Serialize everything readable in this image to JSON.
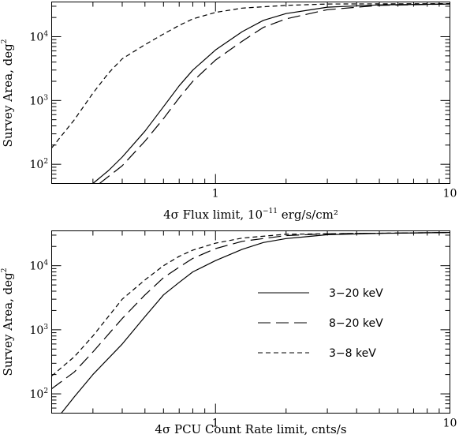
{
  "chart_data": [
    {
      "type": "line",
      "panel": "top",
      "xlabel_prefix": "4σ Flux limit, 10",
      "xlabel_exp": "−11",
      "xlabel_suffix": " erg/s/cm²",
      "ylabel": "Survey Area, deg",
      "ylabel_exp": "2",
      "xscale": "log",
      "yscale": "log",
      "xlim": [
        0.2,
        10
      ],
      "ylim": [
        50,
        35000
      ],
      "x_ticks": [
        {
          "v": 1,
          "label": "1"
        },
        {
          "v": 10,
          "label": "10"
        }
      ],
      "y_ticks": [
        {
          "v": 100,
          "exp": "2"
        },
        {
          "v": 1000,
          "exp": "3"
        },
        {
          "v": 10000,
          "exp": "4"
        }
      ],
      "tick_base": "10",
      "series": [
        {
          "style": "solid",
          "points": [
            [
              0.3,
              50
            ],
            [
              0.35,
              80
            ],
            [
              0.4,
              130
            ],
            [
              0.5,
              330
            ],
            [
              0.6,
              800
            ],
            [
              0.7,
              1700
            ],
            [
              0.8,
              3000
            ],
            [
              1.0,
              6200
            ],
            [
              1.3,
              12000
            ],
            [
              1.6,
              18000
            ],
            [
              2,
              23000
            ],
            [
              3,
              29000
            ],
            [
              5,
              31500
            ],
            [
              10,
              32500
            ]
          ]
        },
        {
          "style": "long-dash",
          "points": [
            [
              0.32,
              50
            ],
            [
              0.4,
              95
            ],
            [
              0.5,
              230
            ],
            [
              0.6,
              520
            ],
            [
              0.7,
              1100
            ],
            [
              0.8,
              2000
            ],
            [
              1.0,
              4300
            ],
            [
              1.3,
              8500
            ],
            [
              1.6,
              14000
            ],
            [
              2,
              19000
            ],
            [
              3,
              26500
            ],
            [
              5,
              31000
            ],
            [
              10,
              32500
            ]
          ]
        },
        {
          "style": "short-dash",
          "points": [
            [
              0.2,
              180
            ],
            [
              0.25,
              500
            ],
            [
              0.3,
              1300
            ],
            [
              0.35,
              2700
            ],
            [
              0.4,
              4500
            ],
            [
              0.5,
              7500
            ],
            [
              0.6,
              11000
            ],
            [
              0.7,
              15000
            ],
            [
              0.8,
              19000
            ],
            [
              1.0,
              24000
            ],
            [
              1.3,
              28000
            ],
            [
              2,
              31000
            ],
            [
              3,
              32500
            ],
            [
              10,
              33000
            ]
          ]
        }
      ]
    },
    {
      "type": "line",
      "panel": "bottom",
      "xlabel": "4σ PCU Count Rate limit, cnts/s",
      "ylabel": "Survey Area, deg",
      "ylabel_exp": "2",
      "xscale": "log",
      "yscale": "log",
      "xlim": [
        0.2,
        10
      ],
      "ylim": [
        50,
        35000
      ],
      "x_ticks": [
        {
          "v": 1,
          "label": "1"
        },
        {
          "v": 10,
          "label": "10"
        }
      ],
      "y_ticks": [
        {
          "v": 100,
          "exp": "2"
        },
        {
          "v": 1000,
          "exp": "3"
        },
        {
          "v": 10000,
          "exp": "4"
        }
      ],
      "tick_base": "10",
      "legend_position": "center-right",
      "series": [
        {
          "name": "3−20 keV",
          "style": "solid",
          "points": [
            [
              0.22,
              50
            ],
            [
              0.25,
              90
            ],
            [
              0.3,
              200
            ],
            [
              0.4,
              600
            ],
            [
              0.5,
              1600
            ],
            [
              0.6,
              3500
            ],
            [
              0.7,
              5500
            ],
            [
              0.8,
              8000
            ],
            [
              1.0,
              12000
            ],
            [
              1.3,
              18000
            ],
            [
              1.6,
              23000
            ],
            [
              2,
              26500
            ],
            [
              3,
              30500
            ],
            [
              5,
              32000
            ],
            [
              10,
              33000
            ]
          ]
        },
        {
          "name": "8−20 keV",
          "style": "long-dash",
          "points": [
            [
              0.2,
              120
            ],
            [
              0.25,
              220
            ],
            [
              0.3,
              450
            ],
            [
              0.4,
              1500
            ],
            [
              0.5,
              3500
            ],
            [
              0.6,
              6500
            ],
            [
              0.7,
              9500
            ],
            [
              0.8,
              13000
            ],
            [
              1.0,
              18500
            ],
            [
              1.3,
              24000
            ],
            [
              2,
              29500
            ],
            [
              3,
              31500
            ],
            [
              10,
              33000
            ]
          ]
        },
        {
          "name": "3−8 keV",
          "style": "short-dash",
          "points": [
            [
              0.2,
              190
            ],
            [
              0.25,
              380
            ],
            [
              0.3,
              800
            ],
            [
              0.4,
              3000
            ],
            [
              0.5,
              6000
            ],
            [
              0.6,
              10000
            ],
            [
              0.7,
              14000
            ],
            [
              0.8,
              17500
            ],
            [
              1.0,
              22500
            ],
            [
              1.3,
              27000
            ],
            [
              2,
              31000
            ],
            [
              10,
              33000
            ]
          ]
        }
      ]
    }
  ]
}
